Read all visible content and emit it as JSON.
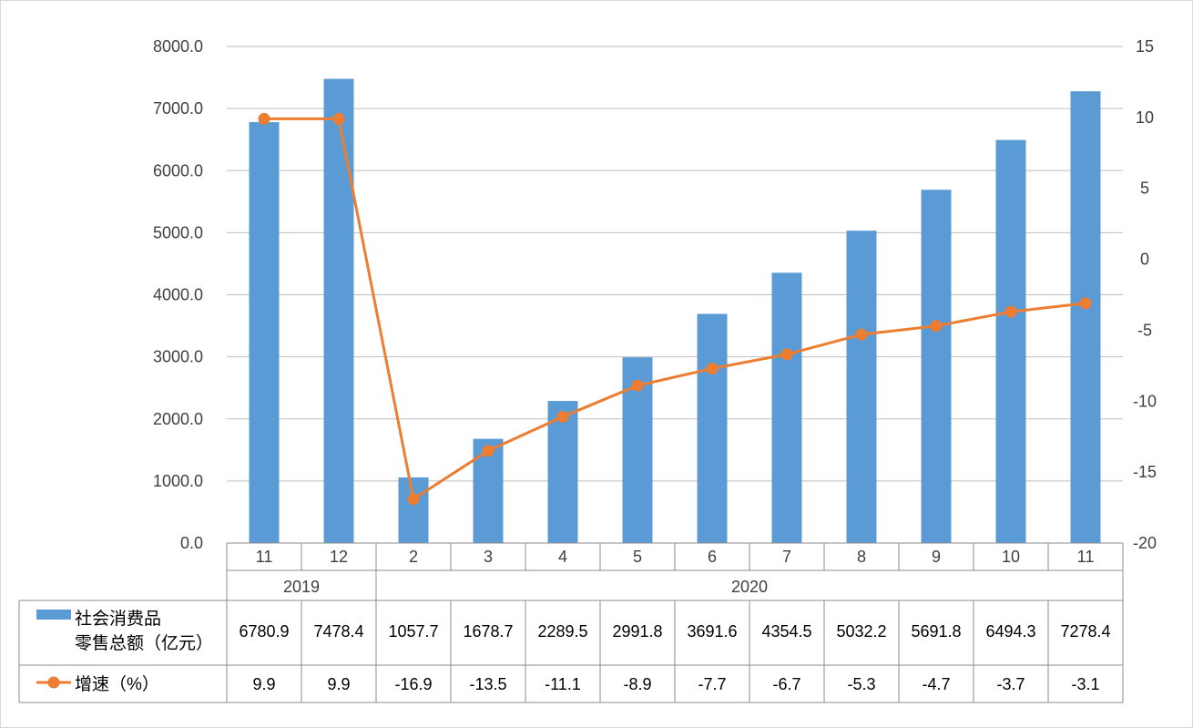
{
  "chart_data": {
    "type": "bar",
    "x_categories": [
      "11",
      "12",
      "2",
      "3",
      "4",
      "5",
      "6",
      "7",
      "8",
      "9",
      "10",
      "11"
    ],
    "year_groups": [
      {
        "label": "2019",
        "count": 2
      },
      {
        "label": "2020",
        "count": 10
      }
    ],
    "series": [
      {
        "name": "社会消费品零售总额（亿元）",
        "name_lines": [
          "社会消费品",
          "零售总额（亿元）"
        ],
        "kind": "bar",
        "axis": "left",
        "color": "#5b9bd5",
        "values": [
          6780.9,
          7478.4,
          1057.7,
          1678.7,
          2289.5,
          2991.8,
          3691.6,
          4354.5,
          5032.2,
          5691.8,
          6494.3,
          7278.4
        ],
        "value_labels": [
          "6780.9",
          "7478.4",
          "1057.7",
          "1678.7",
          "2289.5",
          "2991.8",
          "3691.6",
          "4354.5",
          "5032.2",
          "5691.8",
          "6494.3",
          "7278.4"
        ]
      },
      {
        "name": "增速（%）",
        "name_lines": [
          "增速（%）"
        ],
        "kind": "line",
        "axis": "right",
        "color": "#ed7d31",
        "values": [
          9.9,
          9.9,
          -16.9,
          -13.5,
          -11.1,
          -8.9,
          -7.7,
          -6.7,
          -5.3,
          -4.7,
          -3.7,
          -3.1
        ],
        "value_labels": [
          "9.9",
          "9.9",
          "-16.9",
          "-13.5",
          "-11.1",
          "-8.9",
          "-7.7",
          "-6.7",
          "-5.3",
          "-4.7",
          "-3.7",
          "-3.1"
        ]
      }
    ],
    "y_left": {
      "min": 0,
      "max": 8000,
      "step": 1000,
      "tick_labels": [
        "0.0",
        "1000.0",
        "2000.0",
        "3000.0",
        "4000.0",
        "5000.0",
        "6000.0",
        "7000.0",
        "8000.0"
      ]
    },
    "y_right": {
      "min": -20,
      "max": 15,
      "step": 5,
      "tick_labels": [
        "-20",
        "-15",
        "-10",
        "-5",
        "0",
        "5",
        "10",
        "15"
      ]
    },
    "grid": true,
    "legend": "data-table",
    "data_table": true
  }
}
